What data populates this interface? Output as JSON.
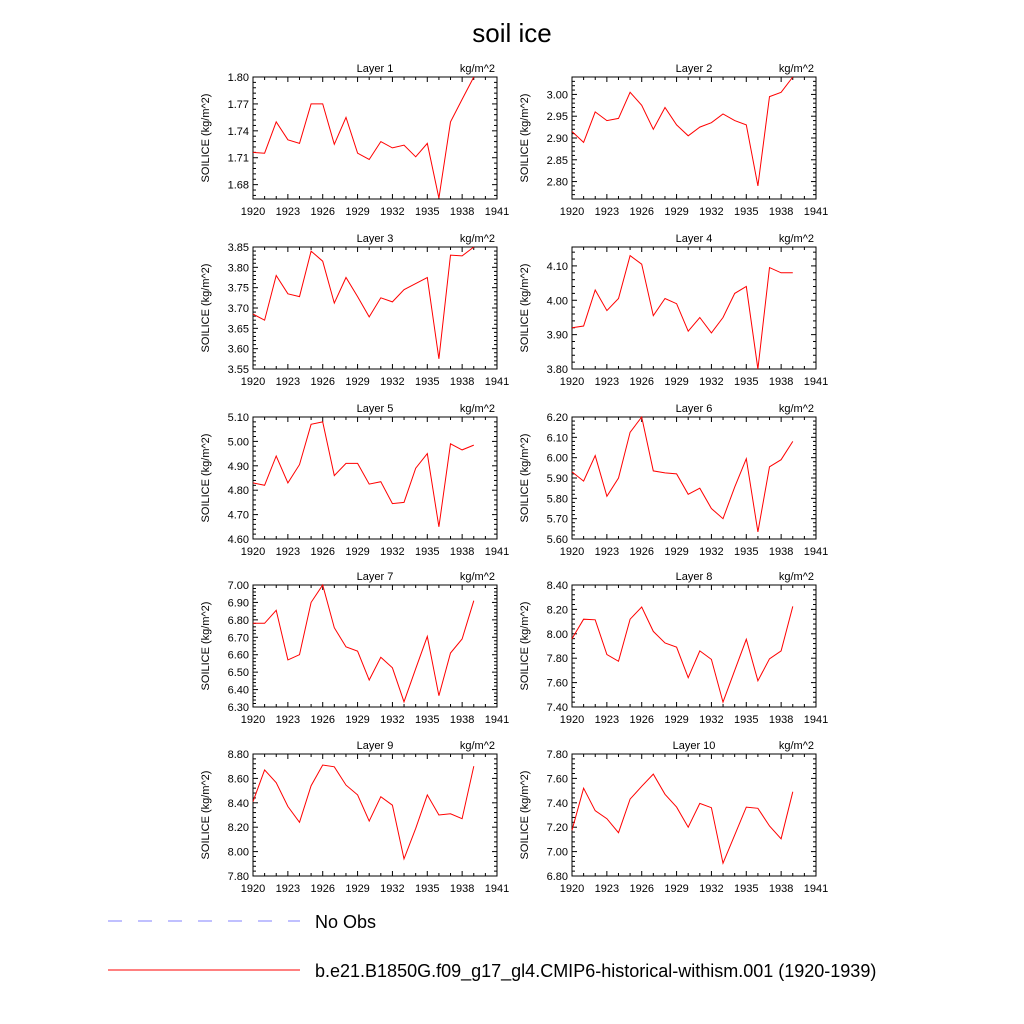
{
  "figure": {
    "title": "soil ice"
  },
  "legend": [
    {
      "label": "No Obs",
      "color": "#8080ff",
      "dashed": true
    },
    {
      "label": "b.e21.B1850G.f09_g17_gl4.CMIP6-historical-withism.001 (1920-1939)",
      "color": "#ff0000",
      "dashed": false
    }
  ],
  "chart_data": [
    {
      "type": "line",
      "title": "Layer 1",
      "units": "kg/m^2",
      "ylabel": "SOILICE  (kg/m^2)",
      "xticks": [
        1920,
        1923,
        1926,
        1929,
        1932,
        1935,
        1938,
        1941
      ],
      "xlim": [
        1920,
        1941
      ],
      "yticks": [
        "1.68",
        "1.71",
        "1.74",
        "1.77",
        "1.80"
      ],
      "ylim": [
        1.664,
        1.8
      ],
      "series": [
        {
          "x": [
            1920,
            1921,
            1922,
            1923,
            1924,
            1925,
            1926,
            1927,
            1928,
            1929,
            1930,
            1931,
            1932,
            1933,
            1934,
            1935,
            1936,
            1937,
            1938,
            1939
          ],
          "values": [
            1.716,
            1.715,
            1.75,
            1.73,
            1.726,
            1.77,
            1.77,
            1.725,
            1.755,
            1.715,
            1.708,
            1.728,
            1.721,
            1.724,
            1.711,
            1.726,
            1.665,
            1.75,
            1.775,
            1.8
          ]
        }
      ]
    },
    {
      "type": "line",
      "title": "Layer 2",
      "units": "kg/m^2",
      "ylabel": "SOILICE  (kg/m^2)",
      "xticks": [
        1920,
        1923,
        1926,
        1929,
        1932,
        1935,
        1938,
        1941
      ],
      "xlim": [
        1920,
        1941
      ],
      "yticks": [
        "2.80",
        "2.85",
        "2.90",
        "2.95",
        "3.00"
      ],
      "ylim": [
        2.76,
        3.04
      ],
      "series": [
        {
          "x": [
            1920,
            1921,
            1922,
            1923,
            1924,
            1925,
            1926,
            1927,
            1928,
            1929,
            1930,
            1931,
            1932,
            1933,
            1934,
            1935,
            1936,
            1937,
            1938,
            1939
          ],
          "values": [
            2.915,
            2.89,
            2.96,
            2.94,
            2.945,
            3.005,
            2.975,
            2.92,
            2.97,
            2.93,
            2.905,
            2.925,
            2.935,
            2.955,
            2.94,
            2.93,
            2.79,
            2.995,
            3.005,
            3.04
          ]
        }
      ]
    },
    {
      "type": "line",
      "title": "Layer 3",
      "units": "kg/m^2",
      "ylabel": "SOILICE  (kg/m^2)",
      "xticks": [
        1920,
        1923,
        1926,
        1929,
        1932,
        1935,
        1938,
        1941
      ],
      "xlim": [
        1920,
        1941
      ],
      "yticks": [
        "3.55",
        "3.60",
        "3.65",
        "3.70",
        "3.75",
        "3.80",
        "3.85"
      ],
      "ylim": [
        3.55,
        3.85
      ],
      "series": [
        {
          "x": [
            1920,
            1921,
            1922,
            1923,
            1924,
            1925,
            1926,
            1927,
            1928,
            1929,
            1930,
            1931,
            1932,
            1933,
            1934,
            1935,
            1936,
            1937,
            1938,
            1939
          ],
          "values": [
            3.685,
            3.67,
            3.78,
            3.735,
            3.728,
            3.84,
            3.815,
            3.712,
            3.775,
            3.728,
            3.678,
            3.725,
            3.715,
            3.745,
            3.76,
            3.775,
            3.575,
            3.83,
            3.828,
            3.85
          ]
        }
      ]
    },
    {
      "type": "line",
      "title": "Layer 4",
      "units": "kg/m^2",
      "ylabel": "SOILICE  (kg/m^2)",
      "xticks": [
        1920,
        1923,
        1926,
        1929,
        1932,
        1935,
        1938,
        1941
      ],
      "xlim": [
        1920,
        1941
      ],
      "yticks": [
        "3.80",
        "3.90",
        "4.00",
        "4.10"
      ],
      "ylim": [
        3.8,
        4.155
      ],
      "series": [
        {
          "x": [
            1920,
            1921,
            1922,
            1923,
            1924,
            1925,
            1926,
            1927,
            1928,
            1929,
            1930,
            1931,
            1932,
            1933,
            1934,
            1935,
            1936,
            1937,
            1938,
            1939
          ],
          "values": [
            3.92,
            3.925,
            4.03,
            3.97,
            4.005,
            4.13,
            4.105,
            3.955,
            4.005,
            3.99,
            3.91,
            3.95,
            3.905,
            3.95,
            4.02,
            4.04,
            3.8,
            4.095,
            4.08,
            4.08
          ]
        }
      ]
    },
    {
      "type": "line",
      "title": "Layer 5",
      "units": "kg/m^2",
      "ylabel": "SOILICE  (kg/m^2)",
      "xticks": [
        1920,
        1923,
        1926,
        1929,
        1932,
        1935,
        1938,
        1941
      ],
      "xlim": [
        1920,
        1941
      ],
      "yticks": [
        "4.60",
        "4.70",
        "4.80",
        "4.90",
        "5.00",
        "5.10"
      ],
      "ylim": [
        4.6,
        5.1
      ],
      "series": [
        {
          "x": [
            1920,
            1921,
            1922,
            1923,
            1924,
            1925,
            1926,
            1927,
            1928,
            1929,
            1930,
            1931,
            1932,
            1933,
            1934,
            1935,
            1936,
            1937,
            1938,
            1939
          ],
          "values": [
            4.83,
            4.82,
            4.94,
            4.83,
            4.905,
            5.07,
            5.08,
            4.86,
            4.91,
            4.91,
            4.825,
            4.835,
            4.745,
            4.75,
            4.89,
            4.95,
            4.65,
            4.99,
            4.965,
            4.985
          ]
        }
      ]
    },
    {
      "type": "line",
      "title": "Layer 6",
      "units": "kg/m^2",
      "ylabel": "SOILICE  (kg/m^2)",
      "xticks": [
        1920,
        1923,
        1926,
        1929,
        1932,
        1935,
        1938,
        1941
      ],
      "xlim": [
        1920,
        1941
      ],
      "yticks": [
        "5.60",
        "5.70",
        "5.80",
        "5.90",
        "6.00",
        "6.10",
        "6.20"
      ],
      "ylim": [
        5.6,
        6.2
      ],
      "series": [
        {
          "x": [
            1920,
            1921,
            1922,
            1923,
            1924,
            1925,
            1926,
            1927,
            1928,
            1929,
            1930,
            1931,
            1932,
            1933,
            1934,
            1935,
            1936,
            1937,
            1938,
            1939
          ],
          "values": [
            5.93,
            5.885,
            6.01,
            5.81,
            5.9,
            6.125,
            6.2,
            5.935,
            5.925,
            5.92,
            5.82,
            5.85,
            5.75,
            5.7,
            5.855,
            5.995,
            5.635,
            5.955,
            5.99,
            6.08
          ]
        }
      ]
    },
    {
      "type": "line",
      "title": "Layer 7",
      "units": "kg/m^2",
      "ylabel": "SOILICE  (kg/m^2)",
      "xticks": [
        1920,
        1923,
        1926,
        1929,
        1932,
        1935,
        1938,
        1941
      ],
      "xlim": [
        1920,
        1941
      ],
      "yticks": [
        "6.30",
        "6.40",
        "6.50",
        "6.60",
        "6.70",
        "6.80",
        "6.90",
        "7.00"
      ],
      "ylim": [
        6.3,
        7.0
      ],
      "series": [
        {
          "x": [
            1920,
            1921,
            1922,
            1923,
            1924,
            1925,
            1926,
            1927,
            1928,
            1929,
            1930,
            1931,
            1932,
            1933,
            1934,
            1935,
            1936,
            1937,
            1938,
            1939
          ],
          "values": [
            6.78,
            6.78,
            6.855,
            6.57,
            6.6,
            6.9,
            7.0,
            6.755,
            6.645,
            6.62,
            6.455,
            6.585,
            6.525,
            6.33,
            6.52,
            6.705,
            6.365,
            6.61,
            6.69,
            6.91
          ]
        }
      ]
    },
    {
      "type": "line",
      "title": "Layer 8",
      "units": "kg/m^2",
      "ylabel": "SOILICE  (kg/m^2)",
      "xticks": [
        1920,
        1923,
        1926,
        1929,
        1932,
        1935,
        1938,
        1941
      ],
      "xlim": [
        1920,
        1941
      ],
      "yticks": [
        "7.40",
        "7.60",
        "7.80",
        "8.00",
        "8.20",
        "8.40"
      ],
      "ylim": [
        7.4,
        8.4
      ],
      "series": [
        {
          "x": [
            1920,
            1921,
            1922,
            1923,
            1924,
            1925,
            1926,
            1927,
            1928,
            1929,
            1930,
            1931,
            1932,
            1933,
            1934,
            1935,
            1936,
            1937,
            1938,
            1939
          ],
          "values": [
            7.96,
            8.12,
            8.115,
            7.83,
            7.775,
            8.12,
            8.22,
            8.02,
            7.925,
            7.89,
            7.64,
            7.86,
            7.79,
            7.44,
            7.7,
            7.955,
            7.615,
            7.795,
            7.86,
            8.225
          ]
        }
      ]
    },
    {
      "type": "line",
      "title": "Layer 9",
      "units": "kg/m^2",
      "ylabel": "SOILICE  (kg/m^2)",
      "xticks": [
        1920,
        1923,
        1926,
        1929,
        1932,
        1935,
        1938,
        1941
      ],
      "xlim": [
        1920,
        1941
      ],
      "yticks": [
        "7.80",
        "8.00",
        "8.20",
        "8.40",
        "8.60",
        "8.80"
      ],
      "ylim": [
        7.8,
        8.8
      ],
      "series": [
        {
          "x": [
            1920,
            1921,
            1922,
            1923,
            1924,
            1925,
            1926,
            1927,
            1928,
            1929,
            1930,
            1931,
            1932,
            1933,
            1934,
            1935,
            1936,
            1937,
            1938,
            1939
          ],
          "values": [
            8.41,
            8.67,
            8.565,
            8.37,
            8.24,
            8.54,
            8.71,
            8.695,
            8.545,
            8.465,
            8.25,
            8.45,
            8.38,
            7.94,
            8.19,
            8.465,
            8.3,
            8.31,
            8.27,
            8.7
          ]
        }
      ]
    },
    {
      "type": "line",
      "title": "Layer 10",
      "units": "kg/m^2",
      "ylabel": "SOILICE  (kg/m^2)",
      "xticks": [
        1920,
        1923,
        1926,
        1929,
        1932,
        1935,
        1938,
        1941
      ],
      "xlim": [
        1920,
        1941
      ],
      "yticks": [
        "6.80",
        "7.00",
        "7.20",
        "7.40",
        "7.60",
        "7.80"
      ],
      "ylim": [
        6.8,
        7.8
      ],
      "series": [
        {
          "x": [
            1920,
            1921,
            1922,
            1923,
            1924,
            1925,
            1926,
            1927,
            1928,
            1929,
            1930,
            1931,
            1932,
            1933,
            1934,
            1935,
            1936,
            1937,
            1938,
            1939
          ],
          "values": [
            7.175,
            7.52,
            7.335,
            7.27,
            7.155,
            7.43,
            7.535,
            7.635,
            7.47,
            7.365,
            7.2,
            7.395,
            7.36,
            6.905,
            7.135,
            7.365,
            7.355,
            7.21,
            7.105,
            7.49
          ]
        }
      ]
    }
  ]
}
